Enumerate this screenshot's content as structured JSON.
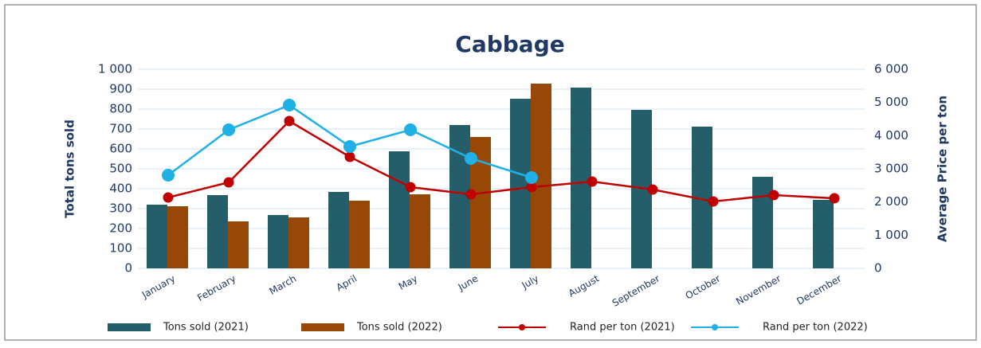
{
  "chart_data": {
    "type": "bar_line",
    "title": "Cabbage",
    "y_label": "Total tons sold",
    "y2_label": "Average Price per ton",
    "categories": [
      "January",
      "February",
      "March",
      "April",
      "May",
      "June",
      "July",
      "August",
      "September",
      "October",
      "November",
      "December"
    ],
    "series": [
      {
        "name": "Tons sold (2021)",
        "kind": "bar",
        "color": "#255e6b",
        "values": [
          320,
          368,
          268,
          384,
          588,
          720,
          852,
          908,
          796,
          712,
          460,
          344
        ]
      },
      {
        "name": "Tons sold (2022)",
        "kind": "bar",
        "color": "#974806",
        "values": [
          312,
          236,
          256,
          340,
          372,
          660,
          928,
          null,
          null,
          null,
          null,
          null
        ]
      },
      {
        "name": "Rand per ton (2021)",
        "kind": "line",
        "axis": "y2",
        "color": "#c00000",
        "values": [
          2136,
          2592,
          4440,
          3360,
          2448,
          2232,
          2448,
          2616,
          2376,
          2016,
          2208,
          2112
        ]
      },
      {
        "name": "Rand per ton (2022)",
        "kind": "line",
        "axis": "y2",
        "color": "#1fb0e6",
        "values": [
          2808,
          4176,
          4920,
          3672,
          4176,
          3312,
          2736,
          null,
          null,
          null,
          null,
          null
        ]
      }
    ],
    "ylim": [
      0,
      1000
    ],
    "yticks": [
      0,
      100,
      200,
      300,
      400,
      500,
      600,
      700,
      800,
      900,
      {
        "value": 1000,
        "label": "1 000"
      }
    ],
    "y2lim": [
      0,
      6000
    ],
    "y2ticks": [
      0,
      {
        "value": 1000,
        "label": "1 000"
      },
      {
        "value": 2000,
        "label": "2 000"
      },
      {
        "value": 3000,
        "label": "3 000"
      },
      {
        "value": 4000,
        "label": "4 000"
      },
      {
        "value": 5000,
        "label": "5 000"
      },
      {
        "value": 6000,
        "label": "6 000"
      }
    ],
    "grid": true
  }
}
